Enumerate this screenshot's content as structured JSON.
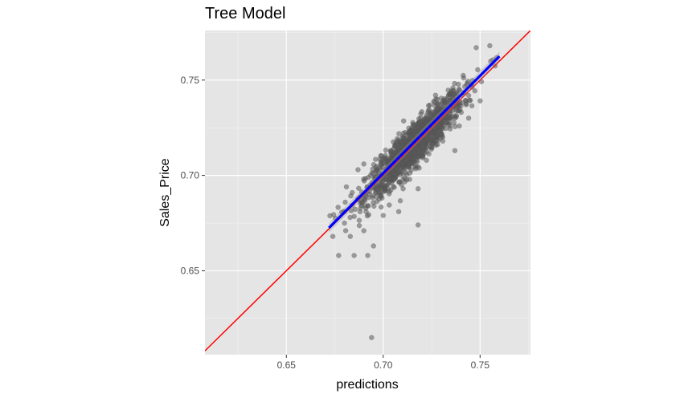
{
  "chart_data": {
    "type": "scatter",
    "title": "Tree Model",
    "xlabel": "predictions",
    "ylabel": "Sales_Price",
    "xlim": [
      0.608,
      0.776
    ],
    "ylim": [
      0.606,
      0.776
    ],
    "x_ticks": [
      0.65,
      0.7,
      0.75
    ],
    "x_tick_labels": [
      "0.65",
      "0.70",
      "0.75"
    ],
    "y_ticks": [
      0.65,
      0.7,
      0.75
    ],
    "y_tick_labels": [
      "0.65",
      "0.70",
      "0.75"
    ],
    "grid": true,
    "background_color": "#e5e5e5",
    "point_color": "#595959",
    "cloud": {
      "x_range": [
        0.672,
        0.76
      ],
      "x_center": 0.716,
      "x_sd": 0.0125,
      "noise_sd": 0.0055,
      "n_points": 1400
    },
    "outliers": [
      {
        "x": 0.694,
        "y": 0.615
      },
      {
        "x": 0.677,
        "y": 0.658
      },
      {
        "x": 0.685,
        "y": 0.658
      },
      {
        "x": 0.692,
        "y": 0.658
      },
      {
        "x": 0.695,
        "y": 0.663
      },
      {
        "x": 0.683,
        "y": 0.668
      },
      {
        "x": 0.69,
        "y": 0.671
      },
      {
        "x": 0.674,
        "y": 0.668
      },
      {
        "x": 0.68,
        "y": 0.675
      },
      {
        "x": 0.7,
        "y": 0.679
      },
      {
        "x": 0.708,
        "y": 0.681
      },
      {
        "x": 0.681,
        "y": 0.694
      },
      {
        "x": 0.684,
        "y": 0.691
      },
      {
        "x": 0.687,
        "y": 0.703
      },
      {
        "x": 0.69,
        "y": 0.706
      },
      {
        "x": 0.718,
        "y": 0.693
      },
      {
        "x": 0.718,
        "y": 0.674
      },
      {
        "x": 0.737,
        "y": 0.713
      },
      {
        "x": 0.727,
        "y": 0.742
      },
      {
        "x": 0.748,
        "y": 0.767
      },
      {
        "x": 0.755,
        "y": 0.768
      }
    ],
    "series": [
      {
        "name": "",
        "type": "reference_line",
        "intercept": 0,
        "slope": 1,
        "color": "#ff0000"
      },
      {
        "name": "",
        "type": "regression_line",
        "x": [
          0.672,
          0.76
        ],
        "y": [
          0.6725,
          0.7625
        ],
        "color": "#0000ff",
        "band_color": "#999999"
      }
    ]
  }
}
